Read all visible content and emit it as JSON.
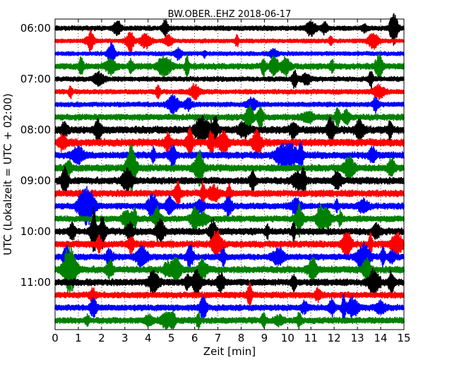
{
  "chart_data": {
    "type": "line",
    "title": "BW.OBER..EHZ 2018-06-17",
    "xlabel": "Zeit  [min]",
    "ylabel": "UTC (Lokalzeit = UTC + 02:00)",
    "xlim": [
      0,
      15
    ],
    "x_ticks": [
      "0",
      "1",
      "2",
      "3",
      "4",
      "5",
      "6",
      "7",
      "8",
      "9",
      "10",
      "11",
      "12",
      "13",
      "14",
      "15"
    ],
    "y_tick_labels": [
      "06:00",
      "07:00",
      "08:00",
      "09:00",
      "10:00",
      "11:00"
    ],
    "trace_interval_minutes": 15,
    "trace_colors": [
      "#000000",
      "#ff0000",
      "#0000ff",
      "#008000"
    ],
    "grid": "vertical dotted lines at each minute",
    "series": [
      {
        "start": "06:00",
        "amplitude": 0.35
      },
      {
        "start": "06:15",
        "amplitude": 0.3
      },
      {
        "start": "06:30",
        "amplitude": 0.3
      },
      {
        "start": "06:45",
        "amplitude": 0.45
      },
      {
        "start": "07:00",
        "amplitude": 0.35
      },
      {
        "start": "07:15",
        "amplitude": 0.35
      },
      {
        "start": "07:30",
        "amplitude": 0.35
      },
      {
        "start": "07:45",
        "amplitude": 0.45
      },
      {
        "start": "08:00",
        "amplitude": 0.55
      },
      {
        "start": "08:15",
        "amplitude": 0.55
      },
      {
        "start": "08:30",
        "amplitude": 0.5
      },
      {
        "start": "08:45",
        "amplitude": 0.5
      },
      {
        "start": "09:00",
        "amplitude": 0.5
      },
      {
        "start": "09:15",
        "amplitude": 0.5
      },
      {
        "start": "09:30",
        "amplitude": 0.45
      },
      {
        "start": "09:45",
        "amplitude": 0.45
      },
      {
        "start": "10:00",
        "amplitude": 0.5
      },
      {
        "start": "10:15",
        "amplitude": 0.5
      },
      {
        "start": "10:30",
        "amplitude": 0.45
      },
      {
        "start": "10:45",
        "amplitude": 0.5
      },
      {
        "start": "11:00",
        "amplitude": 0.5
      },
      {
        "start": "11:15",
        "amplitude": 0.45
      },
      {
        "start": "11:30",
        "amplitude": 0.45
      },
      {
        "start": "11:45",
        "amplitude": 0.45
      }
    ]
  }
}
